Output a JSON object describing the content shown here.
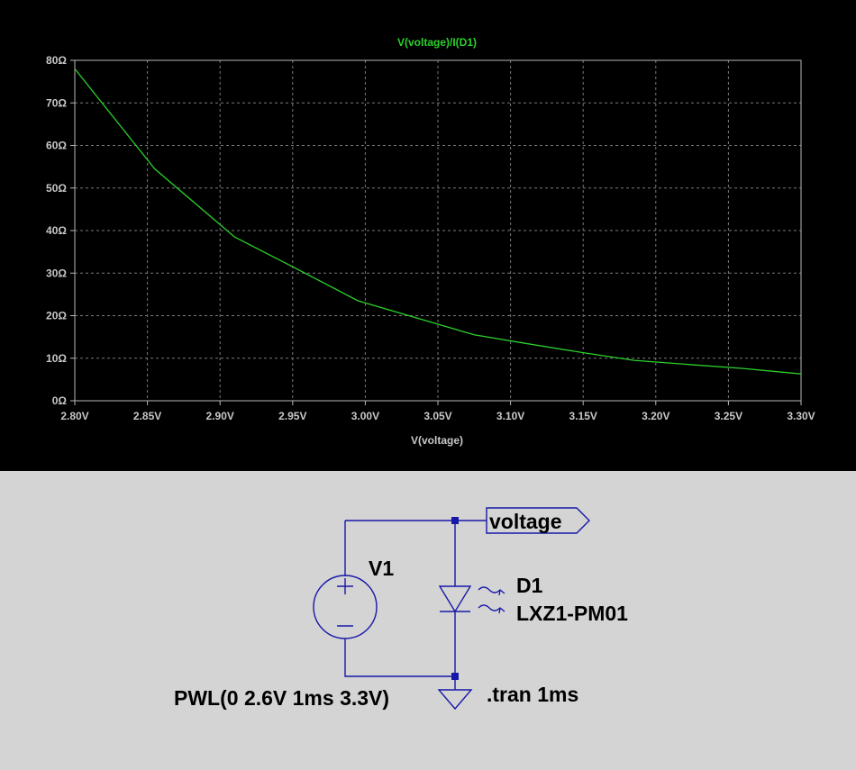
{
  "plot": {
    "trace_title": "V(voltage)/I(D1)",
    "trace_color": "#2bd12b"
  },
  "chart_data": {
    "type": "line",
    "title": "V(voltage)/I(D1)",
    "xlabel": "V(voltage)",
    "ylabel": "",
    "xlim": [
      2.8,
      3.3
    ],
    "ylim": [
      0,
      80
    ],
    "x_ticks": [
      "2.80V",
      "2.85V",
      "2.90V",
      "2.95V",
      "3.00V",
      "3.05V",
      "3.10V",
      "3.15V",
      "3.20V",
      "3.25V",
      "3.30V"
    ],
    "y_ticks": [
      "0Ω",
      "10Ω",
      "20Ω",
      "30Ω",
      "40Ω",
      "50Ω",
      "60Ω",
      "70Ω",
      "80Ω"
    ],
    "grid": true,
    "series": [
      {
        "x": [
          2.8,
          2.855,
          2.91,
          2.95,
          2.995,
          3.035,
          3.075,
          3.11,
          3.15,
          3.185,
          3.22,
          3.26,
          3.3
        ],
        "y": [
          78,
          54.5,
          38.5,
          31.5,
          23.5,
          19.5,
          15.5,
          13.5,
          11.3,
          9.5,
          8.6,
          7.6,
          6.3
        ],
        "color": "#2bd12b"
      }
    ]
  },
  "schematic": {
    "net_label": "voltage",
    "source_name": "V1",
    "source_value": "PWL(0 2.6V 1ms 3.3V)",
    "diode_name": "D1",
    "diode_model": "LXZ1-PM01",
    "directive": ".tran 1ms",
    "wire_color": "#1818a8"
  }
}
